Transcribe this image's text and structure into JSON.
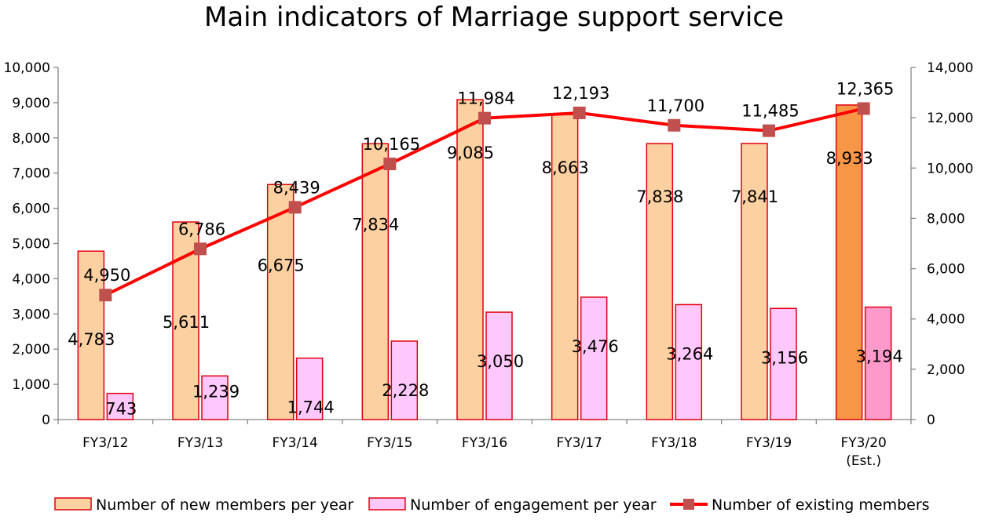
{
  "chart_data": {
    "type": "bar",
    "title": "Main indicators of Marriage support service",
    "categories": [
      "FY3/12",
      "FY3/13",
      "FY3/14",
      "FY3/15",
      "FY3/16",
      "FY3/17",
      "FY3/18",
      "FY3/19",
      "FY3/20\n(Est.)"
    ],
    "series": [
      {
        "name": "Number of new members per year",
        "type": "bar",
        "axis": "left",
        "values": [
          4783,
          5611,
          6675,
          7834,
          9085,
          8663,
          7838,
          7841,
          8933
        ],
        "color": "#fcd0a0",
        "highlight_color": "#f79646",
        "border": "#e0000f"
      },
      {
        "name": "Number of engagement per year",
        "type": "bar",
        "axis": "left",
        "values": [
          743,
          1239,
          1744,
          2228,
          3050,
          3476,
          3264,
          3156,
          3194
        ],
        "color": "#fec8fc",
        "highlight_color": "#fe99cb",
        "border": "#e0000f"
      },
      {
        "name": "Number of existing members",
        "type": "line",
        "axis": "right",
        "values": [
          4950,
          6786,
          8439,
          10165,
          11984,
          12193,
          11700,
          11485,
          12365
        ],
        "color": "#ff0000",
        "marker_color": "#c0504d"
      }
    ],
    "left_axis": {
      "ylim": [
        0,
        10000
      ],
      "ticks": [
        "0",
        "1,000",
        "2,000",
        "3,000",
        "4,000",
        "5,000",
        "6,000",
        "7,000",
        "8,000",
        "9,000",
        "10,000"
      ]
    },
    "right_axis": {
      "ylim": [
        0,
        14000
      ],
      "ticks": [
        "0",
        "2,000",
        "4,000",
        "6,000",
        "8,000",
        "10,000",
        "12,000",
        "14,000"
      ]
    },
    "legend_position": "bottom",
    "grid": false
  }
}
